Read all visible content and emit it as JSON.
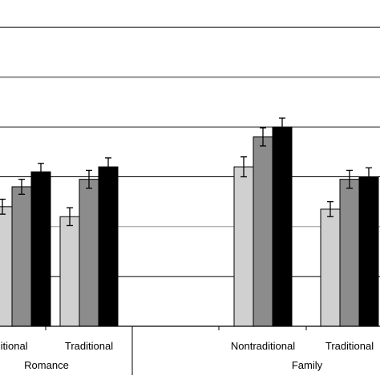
{
  "chart_data": {
    "type": "bar",
    "title": "",
    "xlabel": "",
    "ylabel": "",
    "ylim": [
      0,
      6.5
    ],
    "grid": true,
    "legend": "none",
    "categories": [
      "Nontraditional",
      "Traditional",
      "Nontraditional",
      "Traditional"
    ],
    "groups": [
      {
        "label": "Romance",
        "categories": [
          0,
          1
        ]
      },
      {
        "label": "Family",
        "categories": [
          2,
          3
        ]
      }
    ],
    "series": [
      {
        "color": "#d0d0d0",
        "values": [
          2.4,
          2.2,
          3.2,
          2.35
        ],
        "errors": [
          0.15,
          0.18,
          0.2,
          0.15
        ]
      },
      {
        "color": "#8c8c8c",
        "values": [
          2.8,
          2.95,
          3.8,
          2.95
        ],
        "errors": [
          0.15,
          0.18,
          0.18,
          0.18
        ]
      },
      {
        "color": "#000000",
        "values": [
          3.1,
          3.2,
          4.0,
          3.0
        ],
        "errors": [
          0.17,
          0.18,
          0.18,
          0.18
        ]
      }
    ],
    "visible_category_labels": [
      "ditional",
      "Traditional",
      "Nontraditional",
      "Traditional"
    ]
  }
}
